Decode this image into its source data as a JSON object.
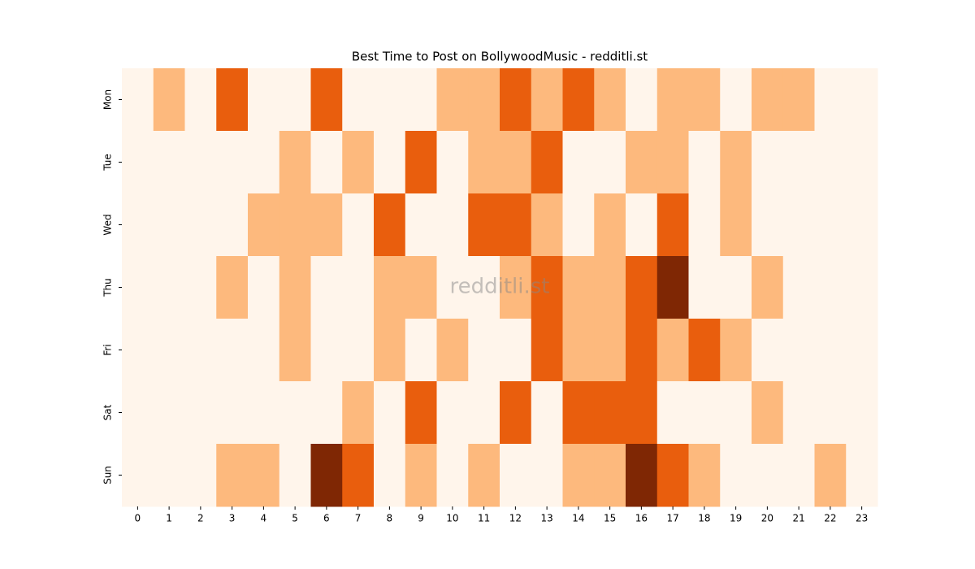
{
  "chart_data": {
    "type": "heatmap",
    "title": "Best Time to Post on BollywoodMusic - redditli.st",
    "watermark": "redditli.st",
    "x": [
      0,
      1,
      2,
      3,
      4,
      5,
      6,
      7,
      8,
      9,
      10,
      11,
      12,
      13,
      14,
      15,
      16,
      17,
      18,
      19,
      20,
      21,
      22,
      23
    ],
    "categories": [
      "Mon",
      "Tue",
      "Wed",
      "Thu",
      "Fri",
      "Sat",
      "Sun"
    ],
    "values": [
      [
        0,
        1,
        0,
        2,
        0,
        0,
        2,
        0,
        0,
        0,
        1,
        1,
        2,
        1,
        2,
        1,
        0,
        1,
        1,
        0,
        1,
        1,
        0,
        0
      ],
      [
        0,
        0,
        0,
        0,
        0,
        1,
        0,
        1,
        0,
        2,
        0,
        1,
        1,
        2,
        0,
        0,
        1,
        1,
        0,
        1,
        0,
        0,
        0,
        0
      ],
      [
        0,
        0,
        0,
        0,
        1,
        1,
        1,
        0,
        2,
        0,
        0,
        2,
        2,
        1,
        0,
        1,
        0,
        2,
        0,
        1,
        0,
        0,
        0,
        0
      ],
      [
        0,
        0,
        0,
        1,
        0,
        1,
        0,
        0,
        1,
        1,
        0,
        0,
        1,
        2,
        1,
        1,
        2,
        3,
        0,
        0,
        1,
        0,
        0,
        0
      ],
      [
        0,
        0,
        0,
        0,
        0,
        1,
        0,
        0,
        1,
        0,
        1,
        0,
        0,
        2,
        1,
        1,
        2,
        1,
        2,
        1,
        0,
        0,
        0,
        0
      ],
      [
        0,
        0,
        0,
        0,
        0,
        0,
        0,
        1,
        0,
        2,
        0,
        0,
        2,
        0,
        2,
        2,
        2,
        0,
        0,
        0,
        1,
        0,
        0,
        0
      ],
      [
        0,
        0,
        0,
        1,
        1,
        0,
        3,
        2,
        0,
        1,
        0,
        1,
        0,
        0,
        1,
        1,
        3,
        2,
        1,
        0,
        0,
        0,
        1,
        0
      ]
    ],
    "colors": [
      "#fff5eb",
      "#fdb97d",
      "#e95e0d",
      "#7f2704"
    ]
  }
}
